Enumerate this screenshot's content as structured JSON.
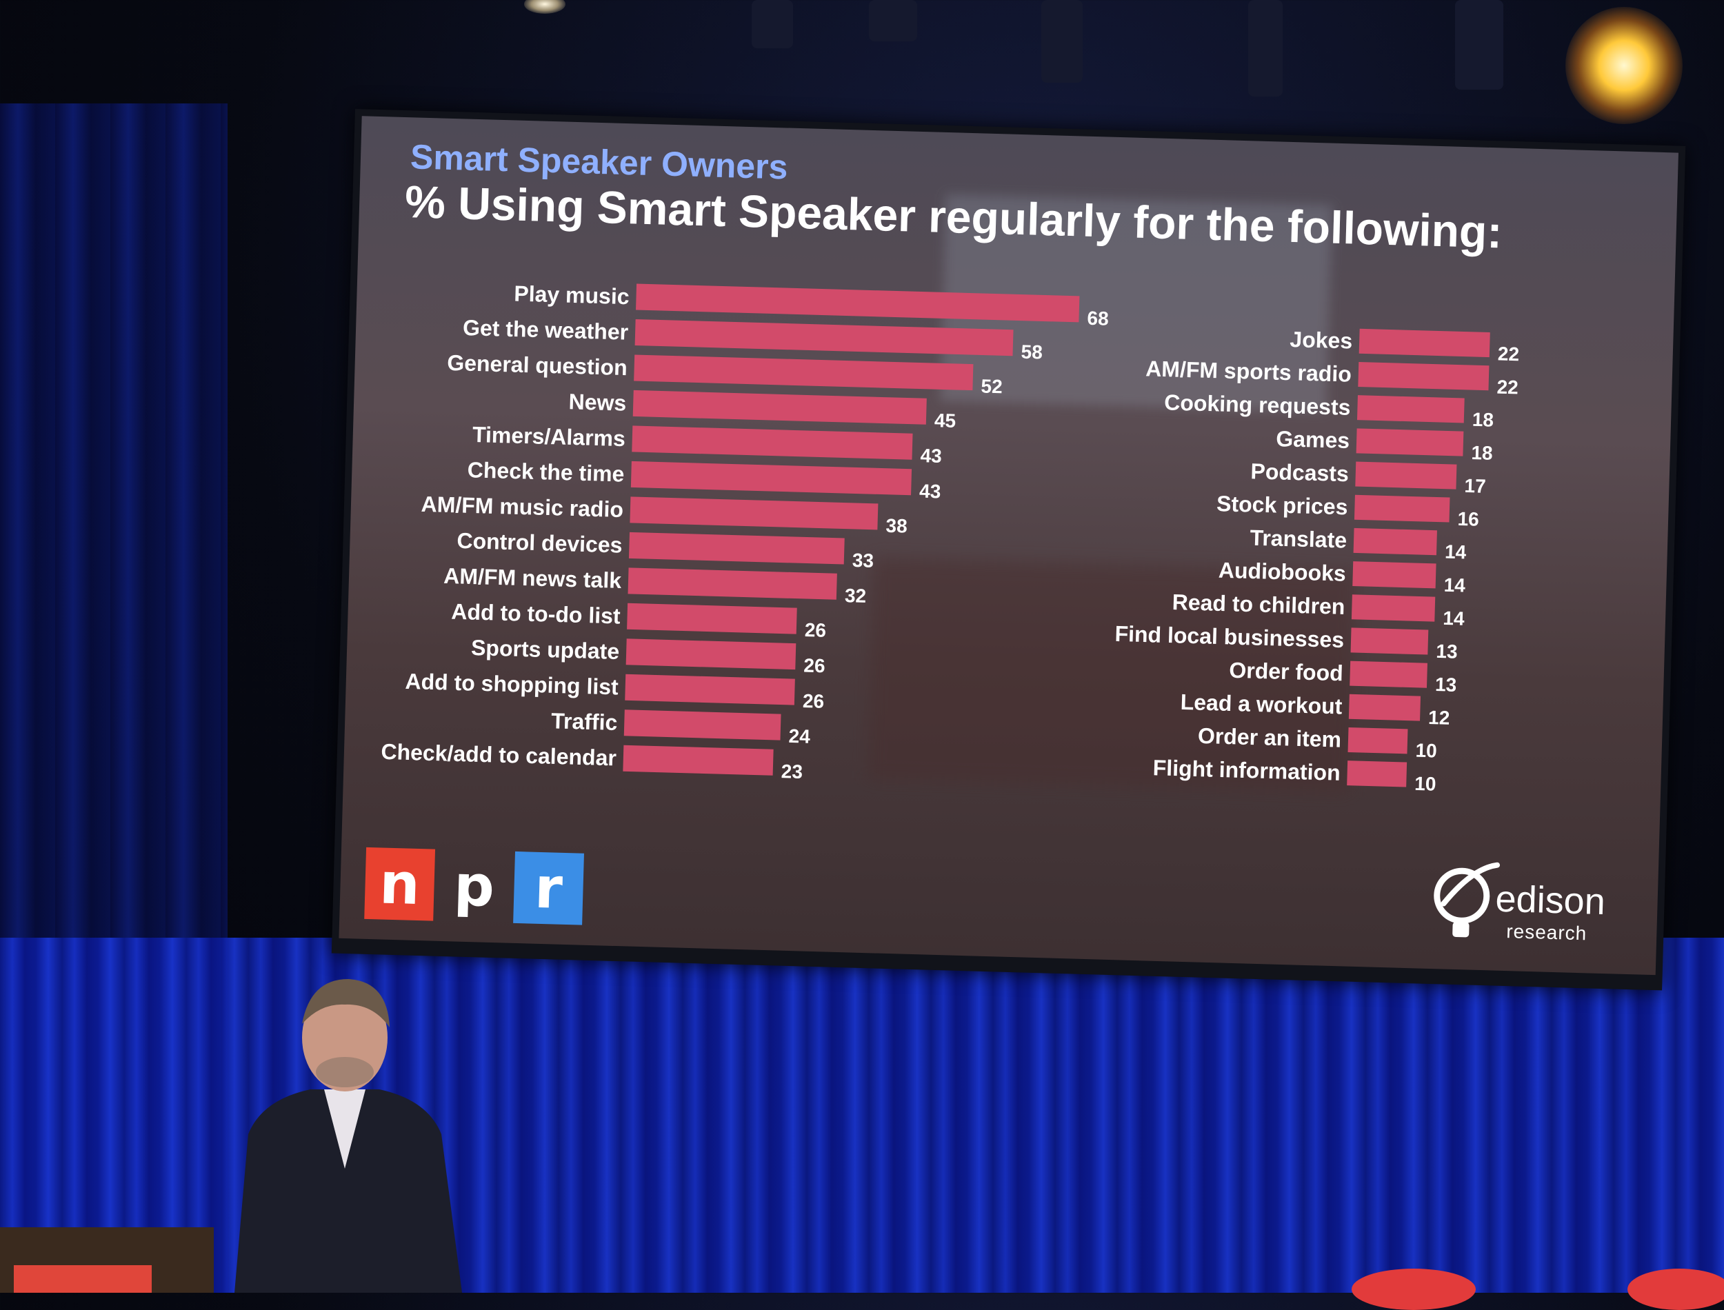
{
  "slide": {
    "subtitle": "Smart Speaker Owners",
    "title": "% Using Smart Speaker regularly for the following:"
  },
  "logos": {
    "npr": {
      "letters": [
        "n",
        "p",
        "r"
      ]
    },
    "edison": {
      "name": "edison",
      "tagline": "research"
    }
  },
  "colors": {
    "bar": "#d24b6a",
    "subtitle": "#8fb0ff",
    "npr_n": "#e8412f",
    "npr_r": "#3b8ee6"
  },
  "chart_data": [
    {
      "type": "bar",
      "orientation": "horizontal",
      "categories": [
        "Play music",
        "Get the weather",
        "General question",
        "News",
        "Timers/Alarms",
        "Check the time",
        "AM/FM music radio",
        "Control devices",
        "AM/FM news talk",
        "Add to to-do list",
        "Sports update",
        "Add to shopping list",
        "Traffic",
        "Check/add to calendar"
      ],
      "values": [
        68,
        58,
        52,
        45,
        43,
        43,
        38,
        33,
        32,
        26,
        26,
        26,
        24,
        23
      ],
      "data_labels": true,
      "grid": false
    },
    {
      "type": "bar",
      "orientation": "horizontal",
      "categories": [
        "Jokes",
        "AM/FM sports radio",
        "Cooking requests",
        "Games",
        "Podcasts",
        "Stock prices",
        "Translate",
        "Audiobooks",
        "Read to children",
        "Find local businesses",
        "Order food",
        "Lead a workout",
        "Order an item",
        "Flight information"
      ],
      "values": [
        22,
        22,
        18,
        18,
        17,
        16,
        14,
        14,
        14,
        13,
        13,
        12,
        10,
        10
      ],
      "data_labels": true,
      "grid": false
    }
  ]
}
